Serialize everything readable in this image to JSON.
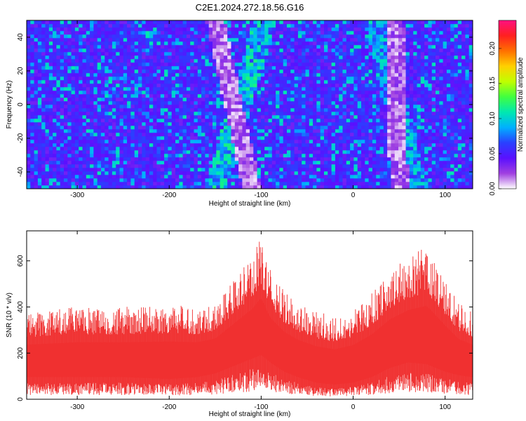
{
  "chart_data": [
    {
      "type": "heatmap",
      "title": "C2E1.2024.272.18.56.G16",
      "xlabel": "Height of straight line (km)",
      "ylabel": "Frequency (Hz)",
      "xlim": [
        -355,
        130
      ],
      "ylim": [
        -50,
        50
      ],
      "x_ticks": [
        -300,
        -200,
        -100,
        0,
        100
      ],
      "y_ticks": [
        -40,
        -20,
        0,
        20,
        40
      ],
      "colorbar": {
        "label": "Normalized spectral amplitude",
        "range": [
          0,
          0.24
        ],
        "ticks": [
          0.0,
          0.05,
          0.1,
          0.15,
          0.2
        ],
        "tick_labels": [
          "0.00",
          "0.05",
          "0.10",
          "0.15",
          "0.20"
        ],
        "colormap": [
          "#ffffff",
          "#a040e0",
          "#5a10ff",
          "#2a40ff",
          "#00b0ff",
          "#00e8b0",
          "#40ff40",
          "#c0ff00",
          "#ffd000",
          "#ff7000",
          "#ff2020",
          "#ff1080"
        ]
      },
      "background_color": "#5a10ff",
      "features": [
        {
          "name": "bright streak",
          "x_at_y_min": -150,
          "x_at_y_max": -95,
          "peak": 0.12
        },
        {
          "name": "bright streak",
          "x_at_y_min": 70,
          "x_at_y_max": 25,
          "peak": 0.11
        },
        {
          "name": "low-amplitude band",
          "x_at_y_min": -110,
          "x_at_y_max": -150,
          "peak": 0.0
        },
        {
          "name": "low-amplitude band",
          "x_at_y_min": 50,
          "x_at_y_max": 45,
          "peak": 0.0
        }
      ]
    },
    {
      "type": "bar",
      "title": "",
      "xlabel": "Height of straight line (km)",
      "ylabel": "SNR (10 * v/v)",
      "xlim": [
        -355,
        130
      ],
      "ylim": [
        0,
        730
      ],
      "x_ticks": [
        -300,
        -200,
        -100,
        0,
        100
      ],
      "y_ticks": [
        0,
        200,
        400,
        600
      ],
      "color": "#f03030",
      "envelope": {
        "x": [
          -355,
          -300,
          -250,
          -200,
          -170,
          -150,
          -130,
          -110,
          -100,
          -90,
          -75,
          -60,
          -40,
          -20,
          0,
          20,
          40,
          60,
          80,
          100,
          115,
          130
        ],
        "upper": [
          380,
          400,
          400,
          410,
          400,
          420,
          520,
          620,
          700,
          560,
          470,
          420,
          380,
          360,
          390,
          460,
          560,
          620,
          660,
          520,
          420,
          380
        ],
        "lower": [
          60,
          60,
          60,
          55,
          60,
          70,
          90,
          110,
          120,
          100,
          75,
          60,
          45,
          40,
          45,
          60,
          85,
          100,
          95,
          75,
          65,
          60
        ]
      }
    }
  ]
}
